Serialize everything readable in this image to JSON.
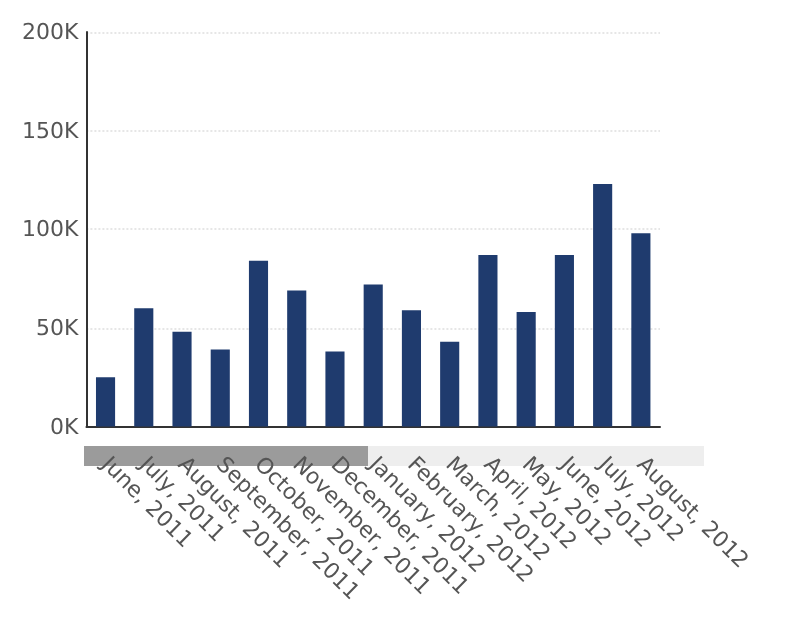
{
  "chart_data": {
    "type": "bar",
    "categories": [
      "June, 2011",
      "July, 2011",
      "August, 2011",
      "September, 2011",
      "October, 2011",
      "November, 2011",
      "December, 2011",
      "January, 2012",
      "February, 2012",
      "March, 2012",
      "April, 2012",
      "May, 2012",
      "June, 2012",
      "July, 2012",
      "August, 2012"
    ],
    "values": [
      25,
      60,
      48,
      39,
      84,
      69,
      38,
      72,
      59,
      43,
      87,
      58,
      87,
      123,
      98
    ],
    "color": "#1f3b6e",
    "ylim": [
      0,
      200
    ],
    "yticks": [
      {
        "value": 0,
        "label": "0K"
      },
      {
        "value": 50,
        "label": "50K"
      },
      {
        "value": 100,
        "label": "100K"
      },
      {
        "value": 150,
        "label": "150K"
      },
      {
        "value": 200,
        "label": "200K"
      }
    ],
    "grid": "y"
  }
}
